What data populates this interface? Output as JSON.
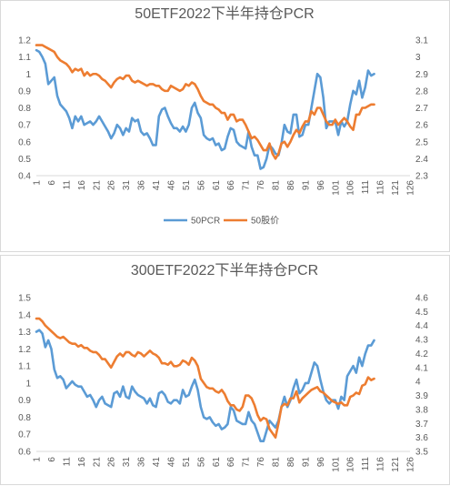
{
  "chart_data": [
    {
      "type": "line",
      "title": "50ETF2022下半年持仓PCR",
      "x": {
        "start": 1,
        "end": 126,
        "tick_labels": [
          "1",
          "6",
          "11",
          "16",
          "21",
          "26",
          "31",
          "36",
          "41",
          "46",
          "51",
          "56",
          "61",
          "66",
          "71",
          "76",
          "81",
          "86",
          "91",
          "96",
          "101",
          "106",
          "111",
          "116",
          "121",
          "126"
        ]
      },
      "ylim_left": [
        0.4,
        1.2
      ],
      "ylim_right": [
        2.3,
        3.1
      ],
      "yticks_left": [
        "0.4",
        "0.5",
        "0.6",
        "0.7",
        "0.8",
        "0.9",
        "1",
        "1.1",
        "1.2"
      ],
      "yticks_right": [
        "2.3",
        "2.4",
        "2.5",
        "2.6",
        "2.7",
        "2.8",
        "2.9",
        "3",
        "3.1"
      ],
      "legend": "bottom",
      "grid": false,
      "series": [
        {
          "name": "50PCR",
          "axis": "left",
          "color": "#5B9BD5",
          "values": [
            1.14,
            1.13,
            1.1,
            1.06,
            0.94,
            0.96,
            0.98,
            0.87,
            0.82,
            0.8,
            0.78,
            0.74,
            0.68,
            0.75,
            0.72,
            0.75,
            0.7,
            0.71,
            0.72,
            0.7,
            0.72,
            0.75,
            0.72,
            0.69,
            0.66,
            0.62,
            0.65,
            0.7,
            0.68,
            0.64,
            0.68,
            0.66,
            0.74,
            0.72,
            0.73,
            0.66,
            0.64,
            0.65,
            0.62,
            0.58,
            0.58,
            0.75,
            0.79,
            0.8,
            0.75,
            0.71,
            0.68,
            0.68,
            0.66,
            0.69,
            0.66,
            0.7,
            0.8,
            0.83,
            0.77,
            0.74,
            0.64,
            0.62,
            0.61,
            0.62,
            0.58,
            0.59,
            0.55,
            0.56,
            0.63,
            0.68,
            0.67,
            0.6,
            0.58,
            0.57,
            0.56,
            0.66,
            0.57,
            0.52,
            0.52,
            0.44,
            0.45,
            0.5,
            0.58,
            0.56,
            0.53,
            0.52,
            0.59,
            0.7,
            0.66,
            0.65,
            0.76,
            0.76,
            0.63,
            0.64,
            0.7,
            0.7,
            0.8,
            0.9,
            1.0,
            0.98,
            0.86,
            0.68,
            0.72,
            0.72,
            0.72,
            0.64,
            0.72,
            0.69,
            0.72,
            0.82,
            0.9,
            0.88,
            0.96,
            0.86,
            0.92,
            1.02,
            0.99,
            1.0
          ]
        },
        {
          "name": "50股价",
          "axis": "right",
          "color": "#ED7D31",
          "values": [
            3.07,
            3.07,
            3.07,
            3.06,
            3.05,
            3.04,
            3.03,
            3.0,
            2.98,
            2.97,
            2.96,
            2.94,
            2.91,
            2.93,
            2.92,
            2.93,
            2.89,
            2.91,
            2.89,
            2.9,
            2.9,
            2.89,
            2.87,
            2.86,
            2.84,
            2.82,
            2.85,
            2.87,
            2.88,
            2.87,
            2.89,
            2.89,
            2.86,
            2.85,
            2.86,
            2.85,
            2.84,
            2.83,
            2.84,
            2.84,
            2.83,
            2.83,
            2.81,
            2.8,
            2.8,
            2.83,
            2.82,
            2.81,
            2.8,
            2.81,
            2.84,
            2.83,
            2.85,
            2.84,
            2.81,
            2.77,
            2.74,
            2.73,
            2.72,
            2.72,
            2.7,
            2.69,
            2.67,
            2.67,
            2.63,
            2.66,
            2.66,
            2.62,
            2.63,
            2.63,
            2.6,
            2.56,
            2.52,
            2.53,
            2.51,
            2.48,
            2.45,
            2.45,
            2.49,
            2.43,
            2.4,
            2.43,
            2.49,
            2.5,
            2.47,
            2.5,
            2.54,
            2.57,
            2.55,
            2.59,
            2.62,
            2.62,
            2.68,
            2.66,
            2.7,
            2.7,
            2.66,
            2.62,
            2.6,
            2.6,
            2.63,
            2.6,
            2.62,
            2.64,
            2.62,
            2.59,
            2.57,
            2.66,
            2.66,
            2.7,
            2.7,
            2.71,
            2.72,
            2.72
          ]
        }
      ]
    },
    {
      "type": "line",
      "title": "300ETF2022下半年持仓PCR",
      "x": {
        "start": 1,
        "end": 126,
        "tick_labels": [
          "1",
          "6",
          "11",
          "16",
          "21",
          "26",
          "31",
          "36",
          "41",
          "46",
          "51",
          "56",
          "61",
          "66",
          "71",
          "76",
          "81",
          "86",
          "91",
          "96",
          "101",
          "106",
          "111",
          "116",
          "121",
          "126"
        ]
      },
      "ylim_left": [
        0.6,
        1.5
      ],
      "ylim_right": [
        3.5,
        4.6
      ],
      "yticks_left": [
        "0.6",
        "0.7",
        "0.8",
        "0.9",
        "1",
        "1.1",
        "1.2",
        "1.3",
        "1.4",
        "1.5"
      ],
      "yticks_right": [
        "3.5",
        "3.6",
        "3.7",
        "3.8",
        "3.9",
        "4",
        "4.1",
        "4.2",
        "4.3",
        "4.4",
        "4.5",
        "4.6"
      ],
      "legend": "none",
      "grid": false,
      "series": [
        {
          "name": "",
          "axis": "left",
          "color": "#5B9BD5",
          "values": [
            1.3,
            1.31,
            1.29,
            1.21,
            1.25,
            1.2,
            1.08,
            1.03,
            1.04,
            1.02,
            0.97,
            0.99,
            1.01,
            0.99,
            0.98,
            0.98,
            0.95,
            0.92,
            0.93,
            0.9,
            0.86,
            0.9,
            0.92,
            0.88,
            0.87,
            0.86,
            0.94,
            0.95,
            0.92,
            0.98,
            0.92,
            0.91,
            0.98,
            0.95,
            0.93,
            0.92,
            0.91,
            0.88,
            0.91,
            0.87,
            0.86,
            0.94,
            0.95,
            0.93,
            0.89,
            0.88,
            0.9,
            0.9,
            0.88,
            0.96,
            0.92,
            0.93,
            0.98,
            1.02,
            0.96,
            0.86,
            0.8,
            0.79,
            0.8,
            0.77,
            0.75,
            0.76,
            0.73,
            0.74,
            0.76,
            0.86,
            0.84,
            0.78,
            0.77,
            0.76,
            0.76,
            0.83,
            0.78,
            0.76,
            0.71,
            0.66,
            0.66,
            0.72,
            0.78,
            0.76,
            0.74,
            0.78,
            0.86,
            0.92,
            0.86,
            0.9,
            0.97,
            1.02,
            0.94,
            0.96,
            1.0,
            1.0,
            1.06,
            1.12,
            1.1,
            1.02,
            0.95,
            0.9,
            0.88,
            0.9,
            0.9,
            0.85,
            0.92,
            0.9,
            1.04,
            1.07,
            1.1,
            1.06,
            1.15,
            1.1,
            1.17,
            1.22,
            1.22,
            1.25
          ]
        },
        {
          "name": "",
          "axis": "right",
          "color": "#ED7D31",
          "values": [
            4.45,
            4.45,
            4.43,
            4.4,
            4.38,
            4.36,
            4.34,
            4.32,
            4.31,
            4.32,
            4.3,
            4.28,
            4.27,
            4.27,
            4.25,
            4.26,
            4.24,
            4.24,
            4.22,
            4.21,
            4.21,
            4.19,
            4.16,
            4.16,
            4.13,
            4.1,
            4.14,
            4.18,
            4.2,
            4.18,
            4.21,
            4.21,
            4.19,
            4.18,
            4.21,
            4.2,
            4.18,
            4.2,
            4.22,
            4.2,
            4.19,
            4.17,
            4.13,
            4.13,
            4.12,
            4.14,
            4.11,
            4.11,
            4.12,
            4.15,
            4.14,
            4.12,
            4.17,
            4.15,
            4.11,
            4.02,
            3.99,
            3.96,
            3.95,
            3.95,
            3.93,
            3.92,
            3.94,
            3.91,
            3.86,
            3.83,
            3.83,
            3.8,
            3.79,
            3.82,
            3.9,
            3.9,
            3.88,
            3.83,
            3.76,
            3.72,
            3.74,
            3.73,
            3.66,
            3.63,
            3.6,
            3.7,
            3.82,
            3.84,
            3.83,
            3.88,
            3.88,
            3.93,
            3.85,
            3.88,
            3.9,
            3.92,
            3.94,
            3.95,
            3.96,
            3.93,
            3.92,
            3.9,
            3.88,
            3.86,
            3.85,
            3.84,
            3.85,
            3.83,
            3.83,
            3.89,
            3.9,
            3.92,
            3.91,
            3.97,
            3.98,
            4.03,
            4.01,
            4.02
          ]
        }
      ]
    }
  ],
  "legend": {
    "s1": "50PCR",
    "s2": "50股价"
  }
}
